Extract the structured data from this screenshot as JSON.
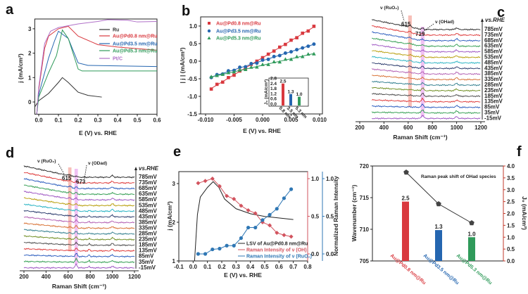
{
  "panel_letters": [
    "a",
    "b",
    "c",
    "d",
    "e",
    "f"
  ],
  "chart_data": [
    {
      "type": "line",
      "panel": "a",
      "xlabel": "E (V) vs. RHE",
      "ylabel": "j (mA/cm²)",
      "xlim": [
        -0.02,
        0.6
      ],
      "ylim": [
        -0.5,
        3.4
      ],
      "xticks": [
        "0.0",
        "0.1",
        "0.2",
        "0.3",
        "0.4",
        "0.5",
        "0.6"
      ],
      "yticks": [
        "0",
        "1",
        "2",
        "3"
      ],
      "legend_position": "top-right",
      "series": [
        {
          "name": "Ru",
          "color": "#333333",
          "x": [
            -0.02,
            0,
            0.05,
            0.1,
            0.12,
            0.15,
            0.2,
            0.25,
            0.32
          ],
          "y": [
            -0.2,
            0.05,
            0.35,
            0.8,
            1.0,
            0.8,
            0.4,
            0.27,
            0.2
          ]
        },
        {
          "name": "Au@Pd0.8 nm@Ru",
          "color": "#d9393f",
          "x": [
            -0.01,
            0,
            0.03,
            0.05,
            0.1,
            0.15,
            0.2,
            0.3,
            0.4,
            0.6
          ],
          "y": [
            -0.5,
            0.5,
            2.2,
            2.7,
            3.0,
            3.1,
            2.7,
            2.35,
            2.25,
            2.12
          ]
        },
        {
          "name": "Au@Pd3.5 nm@Ru",
          "color": "#2566b0",
          "x": [
            -0.01,
            0,
            0.05,
            0.08,
            0.1,
            0.15,
            0.2,
            0.25,
            0.6
          ],
          "y": [
            -0.5,
            0.3,
            1.8,
            2.5,
            2.9,
            2.6,
            1.6,
            1.5,
            1.45
          ]
        },
        {
          "name": "Au@Pd5.3 nm@Ru",
          "color": "#2f9a5a",
          "x": [
            -0.01,
            0,
            0.05,
            0.09,
            0.12,
            0.15,
            0.2,
            0.22,
            0.6
          ],
          "y": [
            -0.5,
            0.2,
            1.2,
            1.9,
            2.95,
            2.6,
            1.35,
            1.27,
            1.27
          ]
        },
        {
          "name": "Pt/C",
          "color": "#b070c8",
          "x": [
            -0.01,
            0,
            0.03,
            0.06,
            0.1,
            0.2,
            0.3,
            0.35,
            0.45,
            0.5,
            0.6
          ],
          "y": [
            -0.5,
            0.6,
            2.4,
            2.9,
            3.05,
            3.2,
            3.3,
            3.37,
            3.35,
            3.28,
            3.3
          ]
        }
      ]
    },
    {
      "type": "scatter",
      "panel": "b",
      "xlabel": "E (V) vs. RHE",
      "ylabel": "| j | (mA/cm²)",
      "xlim": [
        -0.01,
        0.01
      ],
      "ylim": [
        -1.5,
        1.25
      ],
      "xticks": [
        "-0.010",
        "-0.005",
        "0.000",
        "0.005",
        "0.010"
      ],
      "yticks": [
        "-1.5",
        "-1.0",
        "-0.5",
        "0.0",
        "0.5",
        "1.0"
      ],
      "legend_position": "top-left",
      "x": [
        -0.009,
        -0.008,
        -0.007,
        -0.006,
        -0.005,
        -0.004,
        -0.003,
        -0.002,
        -0.001,
        0,
        0.001,
        0.002,
        0.003,
        0.004,
        0.005,
        0.006,
        0.007,
        0.008,
        0.009
      ],
      "series": [
        {
          "name": "Au@Pd0.8 nm@Ru",
          "color": "#d9393f",
          "marker": "square",
          "intercept": 0.1,
          "slope": 97
        },
        {
          "name": "Au@Pd3.5 nm@Ru",
          "color": "#2566b0",
          "marker": "circle",
          "intercept": 0.015,
          "slope": 51.7
        },
        {
          "name": "Au@Pd5.3 nm@Ru",
          "color": "#2f9a5a",
          "marker": "triangle",
          "intercept": -0.115,
          "slope": 37
        }
      ],
      "inset": {
        "ylabel": "J₀ (mA/cm²)",
        "yticks": [
          "0.0",
          "0.6",
          "1.2",
          "1.8",
          "2.4",
          "2.8"
        ],
        "categories": [
          "0.8 nm",
          "3.5 nm",
          "5.3 nm"
        ],
        "values": [
          2.5,
          1.3,
          1.0
        ],
        "value_labels": [
          "2.5",
          "1.3",
          "1.0"
        ]
      }
    },
    {
      "type": "line",
      "panel": "c",
      "xlabel": "Raman Shift (cm⁻¹)",
      "xlim": [
        200,
        1200
      ],
      "xticks": [
        "200",
        "400",
        "600",
        "800",
        "1000",
        "1200"
      ],
      "axis_title": "vs.RHE",
      "potentials": [
        "785mV",
        "735mV",
        "685mV",
        "635mV",
        "585mV",
        "535mV",
        "485mV",
        "435mV",
        "385mV",
        "335mV",
        "285mV",
        "235mV",
        "185mV",
        "135mV",
        "85mV",
        "35mV",
        "-15mV"
      ],
      "annotations": {
        "band1_label": "ν (RuO₂)",
        "band1_peak": "615",
        "band2_label": "ν (OHad)",
        "band2_peak": "719"
      },
      "peaks": [
        615,
        719,
        1000
      ],
      "band_colors": [
        "#f4a49a",
        "#e9a6ee"
      ]
    },
    {
      "type": "line",
      "panel": "d",
      "xlabel": "Raman Shift (cm⁻¹)",
      "xlim": [
        200,
        1200
      ],
      "xticks": [
        "200",
        "400",
        "600",
        "800",
        "1000",
        "1200"
      ],
      "axis_title": "vs.RHE",
      "potentials": [
        "785mV",
        "735mV",
        "685mV",
        "635mV",
        "585mV",
        "535mV",
        "485mV",
        "435mV",
        "385mV",
        "335mV",
        "285mV",
        "235mV",
        "185mV",
        "135mV",
        "85mV",
        "35mV",
        "-15mV"
      ],
      "annotations": {
        "band1_label": "ν (RuO₂)",
        "band1_peak": "615",
        "band2_label": "ν (ODad)",
        "band2_peak": "673"
      },
      "peaks": [
        615,
        673,
        790,
        1000
      ],
      "band_colors": [
        "#f4a49a",
        "#e9a6ee"
      ]
    },
    {
      "type": "line",
      "panel": "e",
      "xlabel": "E (V) vs. RHE",
      "ylabel": "j (mA/cm²)",
      "ylabel_right": "Normalized Raman Intensity",
      "xlim": [
        -0.1,
        0.8
      ],
      "ylim": [
        1,
        3.3
      ],
      "ylim_right": [
        -0.1,
        1.1
      ],
      "xticks": [
        "-0.1",
        "0.0",
        "0.1",
        "0.2",
        "0.3",
        "0.4",
        "0.5",
        "0.6",
        "0.7",
        "0.8"
      ],
      "yticks": [
        "1",
        "2",
        "3"
      ],
      "yticks_right": [
        "0.0",
        "0.5",
        "1.0"
      ],
      "legend_position": "bottom-right",
      "series": [
        {
          "name": "LSV of Au@Pd0.8 nm@Ru",
          "color": "#222222",
          "x": [
            0.01,
            0.03,
            0.05,
            0.1,
            0.14,
            0.18,
            0.22,
            0.3,
            0.4,
            0.5,
            0.7
          ],
          "y": [
            1.0,
            2.2,
            2.65,
            2.9,
            3.05,
            2.9,
            2.6,
            2.35,
            2.22,
            2.15,
            2.07
          ]
        },
        {
          "name": "Raman Intensity of ν (OH)",
          "color": "#d2535e",
          "axis": "right",
          "x": [
            0.035,
            0.085,
            0.135,
            0.185,
            0.235,
            0.285,
            0.335,
            0.385,
            0.435,
            0.485,
            0.535,
            0.585,
            0.635,
            0.685
          ],
          "y": [
            0.94,
            0.97,
            1.0,
            0.9,
            0.77,
            0.73,
            0.64,
            0.58,
            0.54,
            0.42,
            0.38,
            0.28,
            0.25,
            0.23
          ]
        },
        {
          "name": "Raman Intensity of ν (RuO₂)",
          "color": "#2f77b4",
          "axis": "right",
          "x": [
            0.035,
            0.085,
            0.135,
            0.185,
            0.235,
            0.285,
            0.335,
            0.385,
            0.435,
            0.485,
            0.535,
            0.585,
            0.635,
            0.685
          ],
          "y": [
            0,
            0,
            0.06,
            0.07,
            0.11,
            0.11,
            0.21,
            0.35,
            0.35,
            0.45,
            0.52,
            0.6,
            0.74,
            0.86
          ]
        }
      ]
    },
    {
      "type": "bar",
      "panel": "f",
      "title": "Raman peak shift of OHad species",
      "ylabel": "Wavenumber (cm⁻¹)",
      "ylabel_right": "J₀ (mA/cm²)",
      "ylim": [
        705,
        720
      ],
      "ylim_right": [
        0,
        4
      ],
      "yticks": [
        "705",
        "710",
        "715",
        "720"
      ],
      "yticks_right": [
        "0.0",
        "0.5",
        "1.0",
        "1.5",
        "2.0",
        "2.5",
        "3.0",
        "3.5",
        "4.0"
      ],
      "categories": [
        "Au@Pd0.8 nm@Ru",
        "Au@Pd3.5 nm@Ru",
        "Au@Pd5.3 nm@Ru"
      ],
      "category_colors": [
        "#d9393f",
        "#2566b0",
        "#2f9a5a"
      ],
      "bar_values": [
        2.5,
        1.3,
        1.0
      ],
      "bar_labels": [
        "2.5",
        "1.3",
        "1.0"
      ],
      "wavenumber": [
        719,
        714,
        711
      ]
    }
  ]
}
